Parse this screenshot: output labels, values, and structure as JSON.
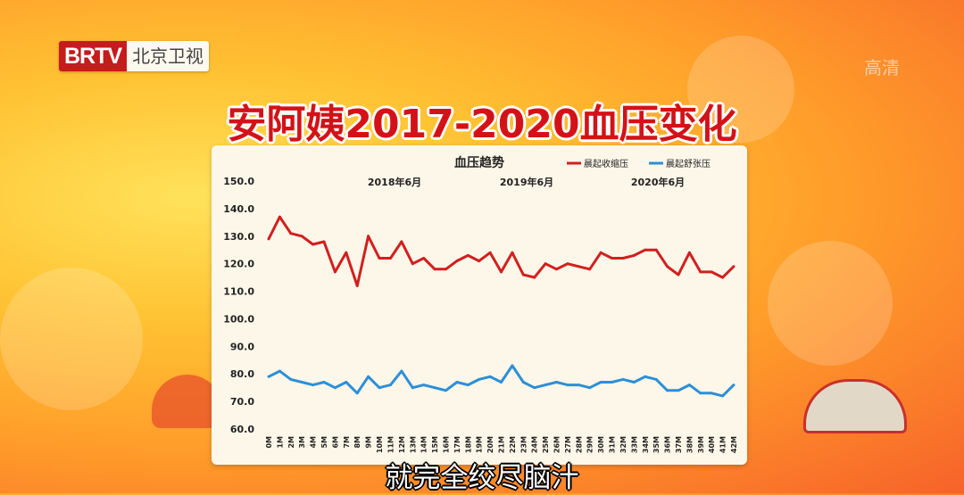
{
  "header": {
    "logo_text": "BRTV",
    "channel": "北京卫视",
    "quality": "高清"
  },
  "headline": "安阿姨2017-2020血压变化",
  "subtitle": "就完全绞尽脑汁",
  "colors": {
    "systolic": "#d21f1f",
    "diastolic": "#2d8fd6",
    "headline": "#d31218",
    "panel": "#fdf7e9"
  },
  "chart_data": {
    "type": "line",
    "title": "血压趋势",
    "categories": [
      "0M",
      "1M",
      "2M",
      "3M",
      "4M",
      "5M",
      "6M",
      "7M",
      "8M",
      "9M",
      "10M",
      "11M",
      "12M",
      "13M",
      "14M",
      "15M",
      "16M",
      "17M",
      "18M",
      "19M",
      "20M",
      "21M",
      "22M",
      "23M",
      "24M",
      "25M",
      "26M",
      "27M",
      "28M",
      "29M",
      "30M",
      "31M",
      "32M",
      "33M",
      "34M",
      "35M",
      "36M",
      "37M",
      "38M",
      "39M",
      "40M",
      "41M",
      "42M"
    ],
    "series": [
      {
        "name": "晨起收缩压",
        "values": [
          129,
          137,
          131,
          130,
          127,
          128,
          117,
          124,
          112,
          130,
          122,
          122,
          128,
          120,
          122,
          118,
          118,
          121,
          123,
          121,
          124,
          117,
          124,
          116,
          115,
          120,
          118,
          120,
          119,
          118,
          124,
          122,
          122,
          123,
          125,
          125,
          119,
          116,
          124,
          117,
          117,
          115,
          119
        ]
      },
      {
        "name": "晨起舒张压",
        "values": [
          79,
          81,
          78,
          77,
          76,
          77,
          75,
          77,
          73,
          79,
          75,
          76,
          81,
          75,
          76,
          75,
          74,
          77,
          76,
          78,
          79,
          77,
          83,
          77,
          75,
          76,
          77,
          76,
          76,
          75,
          77,
          77,
          78,
          77,
          79,
          78,
          74,
          74,
          76,
          73,
          73,
          72,
          76
        ]
      }
    ],
    "annotations": [
      "2018年6月",
      "2019年6月",
      "2020年6月"
    ],
    "yticks": [
      "150.0",
      "140.0",
      "130.0",
      "120.0",
      "110.0",
      "100.0",
      "90.0",
      "80.0",
      "70.0",
      "60.0"
    ],
    "ylim": [
      60,
      150
    ],
    "grid": false,
    "legend": "top-right"
  }
}
